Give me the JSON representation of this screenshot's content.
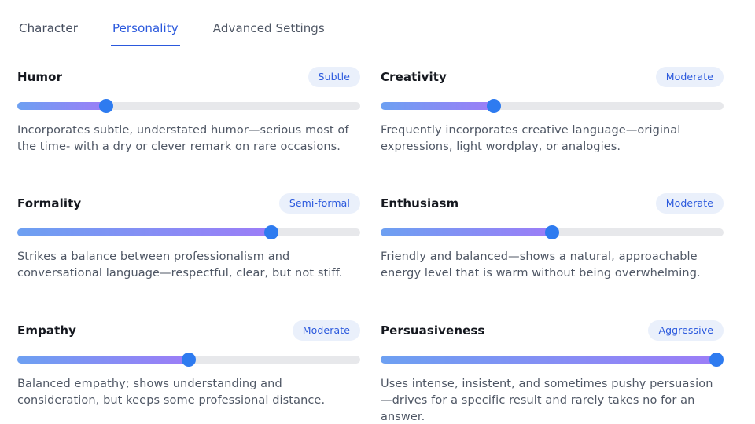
{
  "tabs": [
    {
      "label": "Character",
      "active": false
    },
    {
      "label": "Personality",
      "active": true
    },
    {
      "label": "Advanced Settings",
      "active": false
    }
  ],
  "traits": [
    {
      "name": "Humor",
      "badge": "Subtle",
      "value": 26,
      "description": "Incorporates subtle, understated humor—serious most of the time- with a dry or clever remark on rare occasions."
    },
    {
      "name": "Creativity",
      "badge": "Moderate",
      "value": 33,
      "description": "Frequently incorporates creative language—original expressions, light wordplay, or analogies."
    },
    {
      "name": "Formality",
      "badge": "Semi-formal",
      "value": 74,
      "description": "Strikes a balance between professionalism and conversational language—respectful, clear, but not stiff."
    },
    {
      "name": "Enthusiasm",
      "badge": "Moderate",
      "value": 50,
      "description": "Friendly and balanced—shows a natural, approachable energy level that is warm without being overwhelming."
    },
    {
      "name": "Empathy",
      "badge": "Moderate",
      "value": 50,
      "description": "Balanced empathy; shows understanding and consideration, but keeps some professional distance."
    },
    {
      "name": "Persuasiveness",
      "badge": "Aggressive",
      "value": 98,
      "description": "Uses intense, insistent, and sometimes pushy persuasion—drives for a specific result and rarely takes no for an answer."
    }
  ],
  "colors": {
    "accent": "#2B59DD",
    "badge_background": "#EAF0FB",
    "slider_fill_start": "#6DA0F2",
    "slider_fill_end": "#9C7DF7",
    "slider_thumb": "#2E7BF0",
    "slider_track": "#E7E8EB"
  }
}
